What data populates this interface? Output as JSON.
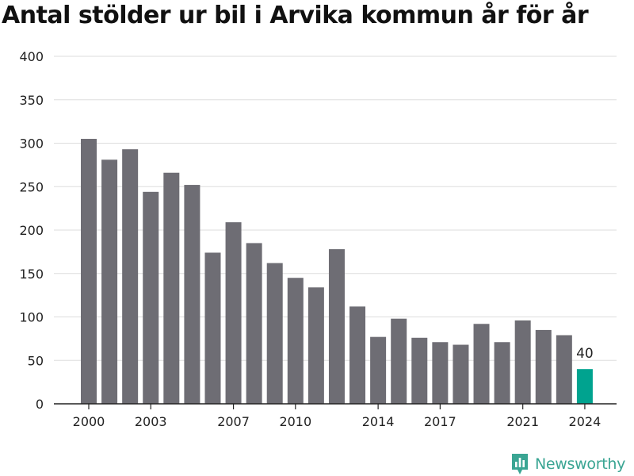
{
  "title": "Antal stölder ur bil i Arvika kommun år för år",
  "brand": {
    "name": "Newsworthy"
  },
  "colors": {
    "bar": "#6e6d74",
    "highlight": "#00a38f",
    "grid": "#dddddd",
    "brand": "#3aa593"
  },
  "chart_data": {
    "type": "bar",
    "title": "Antal stölder ur bil i Arvika kommun år för år",
    "xlabel": "",
    "ylabel": "",
    "ylim": [
      0,
      400
    ],
    "yticks": [
      0,
      50,
      100,
      150,
      200,
      250,
      300,
      350,
      400
    ],
    "xtick_labels": [
      "2000",
      "2003",
      "2007",
      "2010",
      "2014",
      "2017",
      "2021",
      "2024"
    ],
    "categories": [
      "2000",
      "2001",
      "2002",
      "2003",
      "2004",
      "2005",
      "2006",
      "2007",
      "2008",
      "2009",
      "2010",
      "2011",
      "2012",
      "2013",
      "2014",
      "2015",
      "2016",
      "2017",
      "2018",
      "2019",
      "2020",
      "2021",
      "2022",
      "2023",
      "2024"
    ],
    "values": [
      305,
      281,
      293,
      244,
      266,
      252,
      174,
      209,
      185,
      162,
      145,
      134,
      178,
      112,
      77,
      98,
      76,
      71,
      68,
      92,
      71,
      96,
      85,
      79,
      40
    ],
    "highlight": {
      "category": "2024",
      "label": "40"
    },
    "grid": true,
    "legend": "none"
  }
}
